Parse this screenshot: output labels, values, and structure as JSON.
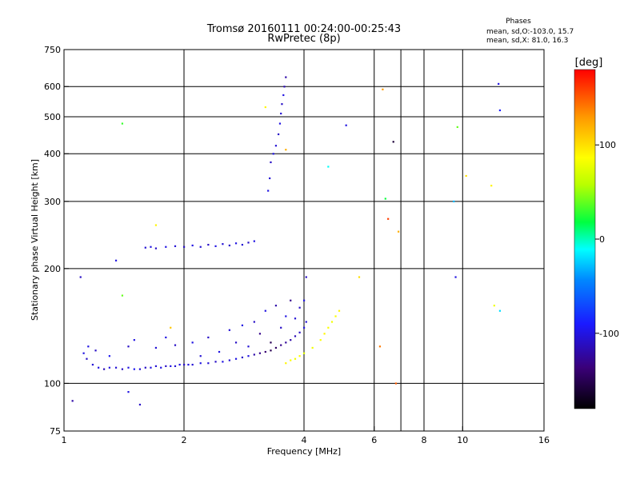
{
  "title": {
    "line1": "Tromsø 20160111 00:24:00-00:25:43",
    "line2": "RwPretec (8p)"
  },
  "phases_box": {
    "heading": "Phases",
    "line_o": "mean, sd,O:-103.0, 15.7",
    "line_x": "mean, sd,X:  81.0, 16.3"
  },
  "colorbar": {
    "unit_label": "[deg]",
    "ticks": [
      {
        "value": 100,
        "label": "100"
      },
      {
        "value": 0,
        "label": "0"
      },
      {
        "value": -100,
        "label": "-100"
      }
    ],
    "range": [
      -180,
      180
    ]
  },
  "chart_data": {
    "type": "scatter",
    "title": "Tromsø 20160111 00:24:00-00:25:43",
    "subtitle": "RwPretec (8p)",
    "xlabel": "Frequency [MHz]",
    "ylabel": "Stationary phase Virtual Height [km]",
    "x_scale": "log",
    "y_scale": "log",
    "xlim": [
      1,
      16
    ],
    "ylim": [
      75,
      750
    ],
    "x_ticks": [
      {
        "value": 1,
        "label": "1"
      },
      {
        "value": 2,
        "label": "2"
      },
      {
        "value": 4,
        "label": "4"
      },
      {
        "value": 6,
        "label": "6"
      },
      {
        "value": 8,
        "label": "8"
      },
      {
        "value": 10,
        "label": "10"
      },
      {
        "value": 16,
        "label": "16"
      }
    ],
    "x_grid": [
      2,
      4,
      6,
      7,
      8,
      10
    ],
    "y_ticks": [
      {
        "value": 75,
        "label": "75"
      },
      {
        "value": 100,
        "label": "100"
      },
      {
        "value": 200,
        "label": "200"
      },
      {
        "value": 300,
        "label": "300"
      },
      {
        "value": 400,
        "label": "400"
      },
      {
        "value": 500,
        "label": "500"
      },
      {
        "value": 600,
        "label": "600"
      },
      {
        "value": 750,
        "label": "750"
      }
    ],
    "y_grid": [
      100,
      200,
      300,
      400,
      500,
      600
    ],
    "color_scale": "phase in degrees, -180 (black) through blue, cyan, green, yellow to red (+180)",
    "grid": true,
    "series": [
      {
        "trace": "E/F1 low trace",
        "color_hint": "blue",
        "points": [
          [
            1.12,
            120,
            -100
          ],
          [
            1.14,
            116,
            -110
          ],
          [
            1.18,
            112,
            -105
          ],
          [
            1.22,
            110,
            -100
          ],
          [
            1.26,
            109,
            -115
          ],
          [
            1.3,
            110,
            -100
          ],
          [
            1.35,
            110,
            -105
          ],
          [
            1.4,
            109,
            -110
          ],
          [
            1.45,
            110,
            -100
          ],
          [
            1.5,
            109,
            -95
          ],
          [
            1.55,
            109,
            -105
          ],
          [
            1.6,
            110,
            -110
          ],
          [
            1.65,
            110,
            -100
          ],
          [
            1.7,
            111,
            -105
          ],
          [
            1.75,
            110,
            -100
          ],
          [
            1.8,
            111,
            -110
          ],
          [
            1.85,
            111,
            -100
          ],
          [
            1.9,
            111,
            -105
          ],
          [
            1.95,
            112,
            -100
          ],
          [
            2.0,
            112,
            -110
          ],
          [
            2.05,
            112,
            -100
          ],
          [
            2.1,
            112,
            -105
          ],
          [
            2.2,
            113,
            -100
          ],
          [
            2.3,
            113,
            -105
          ],
          [
            2.4,
            114,
            -110
          ],
          [
            2.5,
            114,
            -100
          ],
          [
            2.6,
            115,
            -105
          ],
          [
            2.7,
            116,
            -100
          ],
          [
            2.8,
            117,
            -110
          ],
          [
            2.9,
            118,
            -100
          ],
          [
            3.0,
            119,
            -120
          ],
          [
            3.1,
            120,
            -130
          ],
          [
            3.2,
            121,
            -140
          ],
          [
            3.3,
            122,
            -150
          ],
          [
            3.4,
            124,
            -145
          ],
          [
            3.5,
            126,
            -130
          ],
          [
            3.6,
            128,
            -125
          ],
          [
            3.7,
            130,
            -120
          ],
          [
            3.8,
            133,
            -115
          ],
          [
            3.9,
            136,
            -110
          ],
          [
            4.0,
            140,
            -100
          ],
          [
            4.05,
            145,
            -105
          ]
        ]
      },
      {
        "trace": "scattered O points",
        "color_hint": "blue",
        "points": [
          [
            1.15,
            125,
            -100
          ],
          [
            1.2,
            122,
            -110
          ],
          [
            1.3,
            118,
            -95
          ],
          [
            1.45,
            125,
            -110
          ],
          [
            1.5,
            130,
            -100
          ],
          [
            1.7,
            124,
            -105
          ],
          [
            1.8,
            132,
            -100
          ],
          [
            1.9,
            126,
            -110
          ],
          [
            2.1,
            128,
            -100
          ],
          [
            2.2,
            118,
            -105
          ],
          [
            2.3,
            132,
            -110
          ],
          [
            2.45,
            121,
            -100
          ],
          [
            2.6,
            138,
            -105
          ],
          [
            2.7,
            128,
            -110
          ],
          [
            2.8,
            142,
            -100
          ],
          [
            2.9,
            125,
            -105
          ],
          [
            3.0,
            145,
            -110
          ],
          [
            3.1,
            135,
            -130
          ],
          [
            3.2,
            155,
            -100
          ],
          [
            3.3,
            128,
            -150
          ],
          [
            3.4,
            160,
            -120
          ],
          [
            3.5,
            140,
            -110
          ],
          [
            3.6,
            150,
            -100
          ],
          [
            3.7,
            165,
            -130
          ],
          [
            3.8,
            148,
            -105
          ],
          [
            3.9,
            158,
            -110
          ],
          [
            4.0,
            165,
            -100
          ],
          [
            4.05,
            190,
            -110
          ]
        ]
      },
      {
        "trace": "F2 middle trace",
        "color_hint": "blue",
        "points": [
          [
            1.6,
            227,
            -105
          ],
          [
            1.65,
            228,
            -100
          ],
          [
            1.7,
            226,
            -110
          ],
          [
            1.8,
            228,
            -100
          ],
          [
            1.9,
            229,
            -105
          ],
          [
            2.0,
            228,
            -110
          ],
          [
            2.1,
            230,
            -100
          ],
          [
            2.2,
            228,
            -105
          ],
          [
            2.3,
            231,
            -110
          ],
          [
            2.4,
            229,
            -100
          ],
          [
            2.5,
            232,
            -105
          ],
          [
            2.6,
            230,
            -110
          ],
          [
            2.7,
            233,
            -100
          ],
          [
            2.8,
            231,
            -105
          ],
          [
            2.9,
            234,
            -110
          ],
          [
            3.0,
            236,
            -100
          ]
        ]
      },
      {
        "trace": "F2 vertical trace",
        "color_hint": "blue",
        "points": [
          [
            3.25,
            320,
            -100
          ],
          [
            3.28,
            345,
            -105
          ],
          [
            3.3,
            380,
            -110
          ],
          [
            3.35,
            400,
            -100
          ],
          [
            3.4,
            420,
            -105
          ],
          [
            3.45,
            450,
            -110
          ],
          [
            3.48,
            480,
            -100
          ],
          [
            3.5,
            510,
            -105
          ],
          [
            3.52,
            540,
            -110
          ],
          [
            3.55,
            570,
            -100
          ],
          [
            3.57,
            600,
            -115
          ],
          [
            3.6,
            635,
            -120
          ]
        ]
      },
      {
        "trace": "X trace",
        "color_hint": "yellow",
        "points": [
          [
            3.6,
            113,
            90
          ],
          [
            3.7,
            115,
            85
          ],
          [
            3.8,
            116,
            80
          ],
          [
            3.9,
            118,
            85
          ],
          [
            4.0,
            120,
            75
          ],
          [
            4.2,
            124,
            80
          ],
          [
            4.4,
            130,
            85
          ],
          [
            4.5,
            135,
            90
          ],
          [
            4.6,
            140,
            85
          ],
          [
            4.7,
            145,
            80
          ],
          [
            4.8,
            150,
            85
          ],
          [
            4.9,
            155,
            90
          ]
        ]
      },
      {
        "trace": "scattered outliers",
        "color_hint": "mixed",
        "points": [
          [
            1.05,
            90,
            -120
          ],
          [
            1.1,
            190,
            -110
          ],
          [
            1.35,
            210,
            -100
          ],
          [
            1.4,
            170,
            40
          ],
          [
            1.4,
            480,
            30
          ],
          [
            1.45,
            95,
            -100
          ],
          [
            1.55,
            88,
            -110
          ],
          [
            1.7,
            260,
            90
          ],
          [
            1.85,
            140,
            110
          ],
          [
            3.2,
            530,
            90
          ],
          [
            3.6,
            410,
            120
          ],
          [
            4.6,
            370,
            -10
          ],
          [
            5.1,
            475,
            -100
          ],
          [
            5.5,
            190,
            100
          ],
          [
            6.2,
            125,
            140
          ],
          [
            6.3,
            590,
            130
          ],
          [
            6.4,
            305,
            20
          ],
          [
            6.5,
            270,
            160
          ],
          [
            6.7,
            430,
            -160
          ],
          [
            6.8,
            100,
            150
          ],
          [
            6.9,
            250,
            120
          ],
          [
            9.5,
            300,
            -30
          ],
          [
            9.6,
            190,
            -100
          ],
          [
            9.7,
            470,
            40
          ],
          [
            10.2,
            350,
            100
          ],
          [
            11.8,
            330,
            90
          ],
          [
            12.0,
            160,
            80
          ],
          [
            12.3,
            610,
            -100
          ],
          [
            12.4,
            520,
            -90
          ],
          [
            12.4,
            155,
            -20
          ]
        ]
      }
    ]
  }
}
